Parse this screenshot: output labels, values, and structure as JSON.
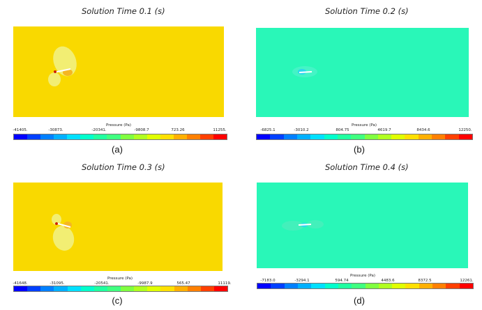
{
  "colorbar_colors": [
    "#0000ff",
    "#0040ff",
    "#0080ff",
    "#00b0ff",
    "#00e0ff",
    "#00ffcc",
    "#20ffa0",
    "#40ff80",
    "#80ff40",
    "#b0ff20",
    "#e0ff00",
    "#ffe000",
    "#ffb000",
    "#ff8000",
    "#ff4000",
    "#ff0000"
  ],
  "panels": [
    {
      "title": "Solution Time 0.1 (s)",
      "colorbar_title": "Pressure (Pa)",
      "ticks": [
        "-41405.",
        "-30873.",
        "-20341.",
        "-9808.7",
        "723.26",
        "11255."
      ],
      "caption": "(a)",
      "background_color": "#f9d900"
    },
    {
      "title": "Solution Time 0.2 (s)",
      "colorbar_title": "Pressure (Pa)",
      "ticks": [
        "-6825.1",
        "-3010.2",
        "804.75",
        "4619.7",
        "8434.6",
        "12250."
      ],
      "caption": "(b)",
      "background_color": "#29f7b8"
    },
    {
      "title": "Solution Time 0.3 (s)",
      "colorbar_title": "Pressure (Pa)",
      "ticks": [
        "-41648.",
        "-31095.",
        "-20541.",
        "-9987.9",
        "565.47",
        "11119."
      ],
      "caption": "(c)",
      "background_color": "#f9d900"
    },
    {
      "title": "Solution Time 0.4 (s)",
      "colorbar_title": "Pressure (Pa)",
      "ticks": [
        "-7183.0",
        "-3294.1",
        "594.74",
        "4483.6",
        "8372.5",
        "12261."
      ],
      "caption": "(d)",
      "background_color": "#29f7b8"
    }
  ]
}
